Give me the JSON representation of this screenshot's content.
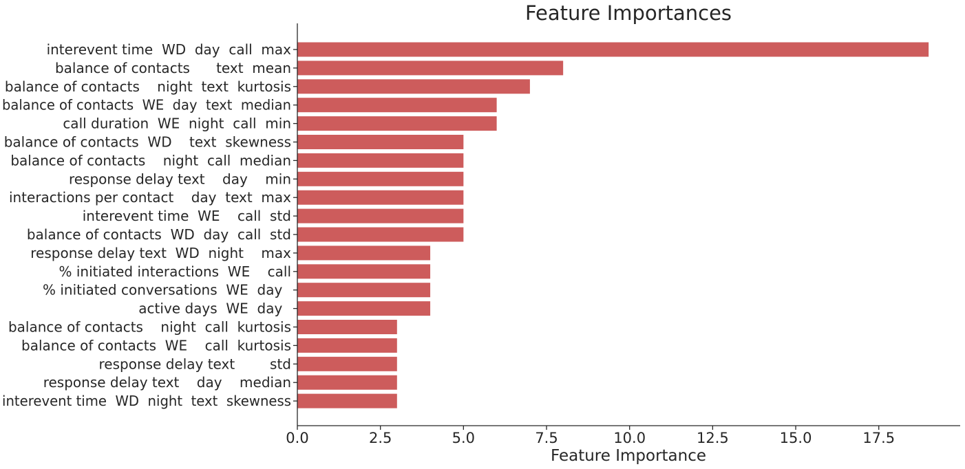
{
  "chart_data": {
    "type": "bar",
    "orientation": "horizontal",
    "title": "Feature Importances",
    "xlabel": "Feature Importance",
    "ylabel": "",
    "xlim": [
      0,
      19.95
    ],
    "xticks": [
      0.0,
      2.5,
      5.0,
      7.5,
      10.0,
      12.5,
      15.0,
      17.5
    ],
    "xtick_labels": [
      "0.0",
      "2.5",
      "5.0",
      "7.5",
      "10.0",
      "12.5",
      "15.0",
      "17.5"
    ],
    "grid": false,
    "bar_color": "#cd5c5c",
    "categories": [
      "interevent time  WD  day  call  max",
      "balance of contacts      text  mean",
      "balance of contacts    night  text  kurtosis",
      "balance of contacts  WE  day  text  median",
      "call duration  WE  night  call  min",
      "balance of contacts  WD    text  skewness",
      "balance of contacts    night  call  median",
      "response delay text    day    min",
      "interactions per contact    day  text  max",
      "interevent time  WE    call  std",
      "balance of contacts  WD  day  call  std",
      "response delay text  WD  night    max",
      "% initiated interactions  WE    call",
      "% initiated conversations  WE  day  ",
      "active days  WE  day  ",
      "balance of contacts    night  call  kurtosis",
      "balance of contacts  WE    call  kurtosis",
      "response delay text        std",
      "response delay text    day    median",
      "interevent time  WD  night  text  skewness"
    ],
    "values": [
      19,
      8,
      7,
      6,
      6,
      5,
      5,
      5,
      5,
      5,
      5,
      4,
      4,
      4,
      4,
      3,
      3,
      3,
      3,
      3
    ]
  }
}
